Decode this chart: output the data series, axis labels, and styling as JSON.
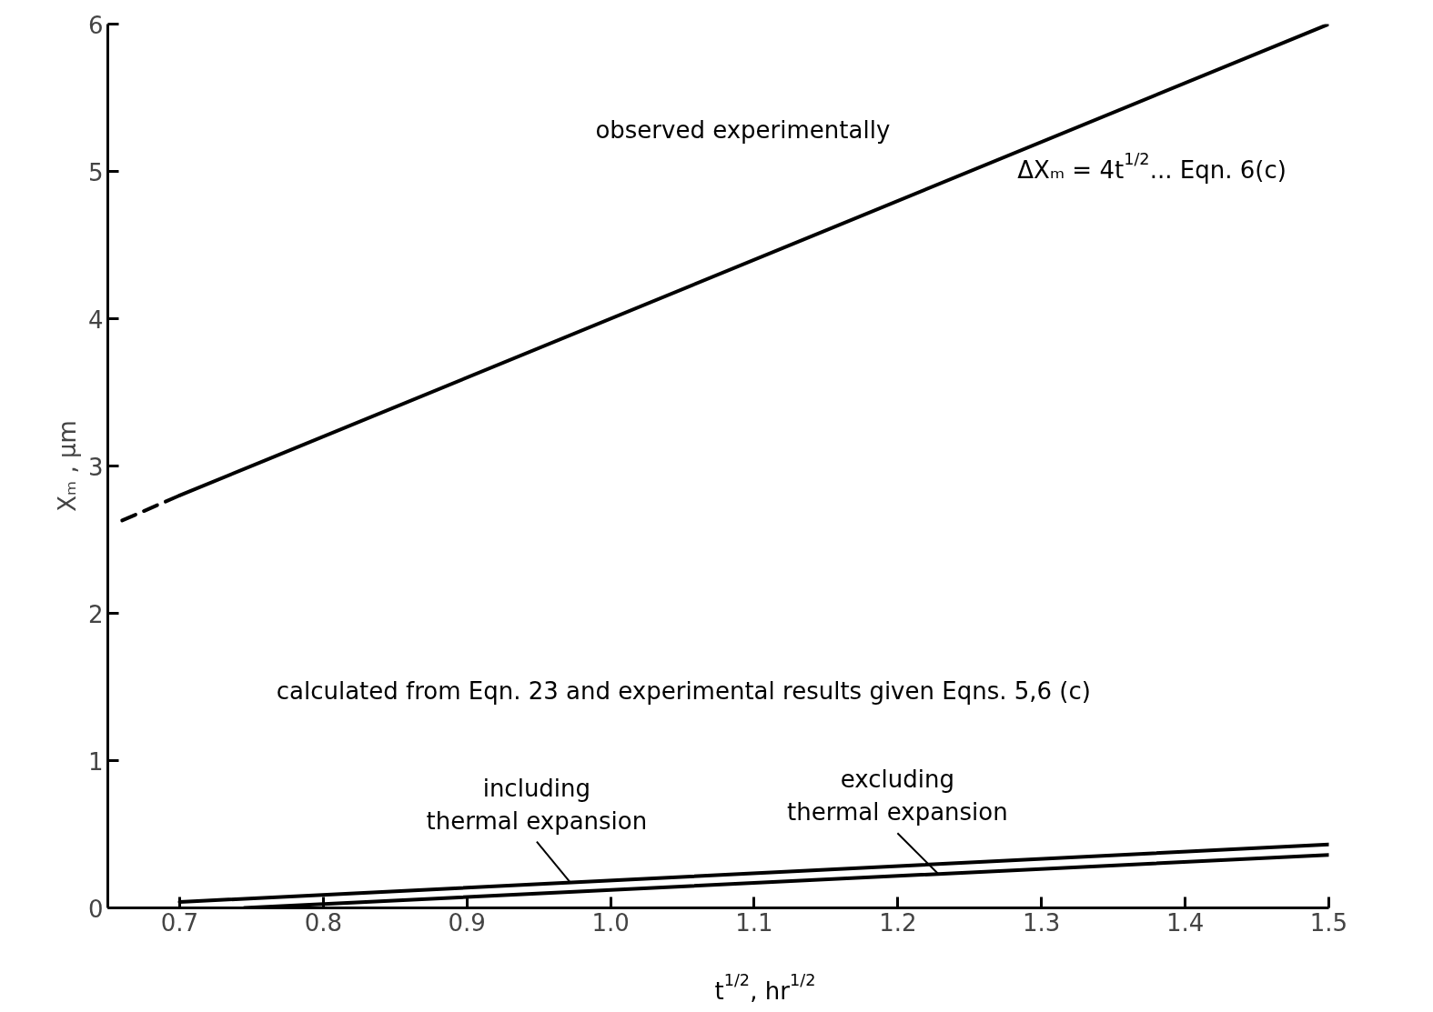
{
  "chart_data": {
    "type": "line",
    "xlabel": "t$^{1/2}$, hr$^{1/2}$",
    "ylabel": "Xₘ , μm",
    "xlim": [
      0.65,
      1.5
    ],
    "ylim": [
      0,
      6
    ],
    "xticks": [
      0.7,
      0.8,
      0.9,
      {
        "value": 1.0,
        "label": "1.0"
      },
      1.1,
      1.2,
      1.3,
      1.4,
      1.5
    ],
    "yticks": [
      0,
      1,
      2,
      3,
      4,
      5,
      6
    ],
    "grid": false,
    "legend": false,
    "marker": "none",
    "annotations": [
      "ΔXₘ = 4t$^{1/2}$... Eqn. 6(c)",
      "calculated from Eqn. 23 and experimental results given Eqns. 5,6 (c)"
    ],
    "series": [
      {
        "name": "observed experimentally",
        "color": "#000000",
        "line_style": "solid",
        "x": [
          0.7,
          1.5
        ],
        "values": [
          2.8,
          6.0
        ]
      },
      {
        "color": "#000000",
        "line_style": "dashed",
        "x": [
          0.66,
          0.7
        ],
        "values": [
          2.63,
          2.8
        ]
      },
      {
        "name": "including\nthermal expansion",
        "color": "#000000",
        "line_style": "solid",
        "x": [
          0.7,
          1.5
        ],
        "values": [
          0.04,
          0.43
        ]
      },
      {
        "name": "excluding\nthermal expansion",
        "color": "#000000",
        "line_style": "solid",
        "x": [
          0.745,
          1.5
        ],
        "values": [
          0.0,
          0.36
        ]
      }
    ]
  }
}
